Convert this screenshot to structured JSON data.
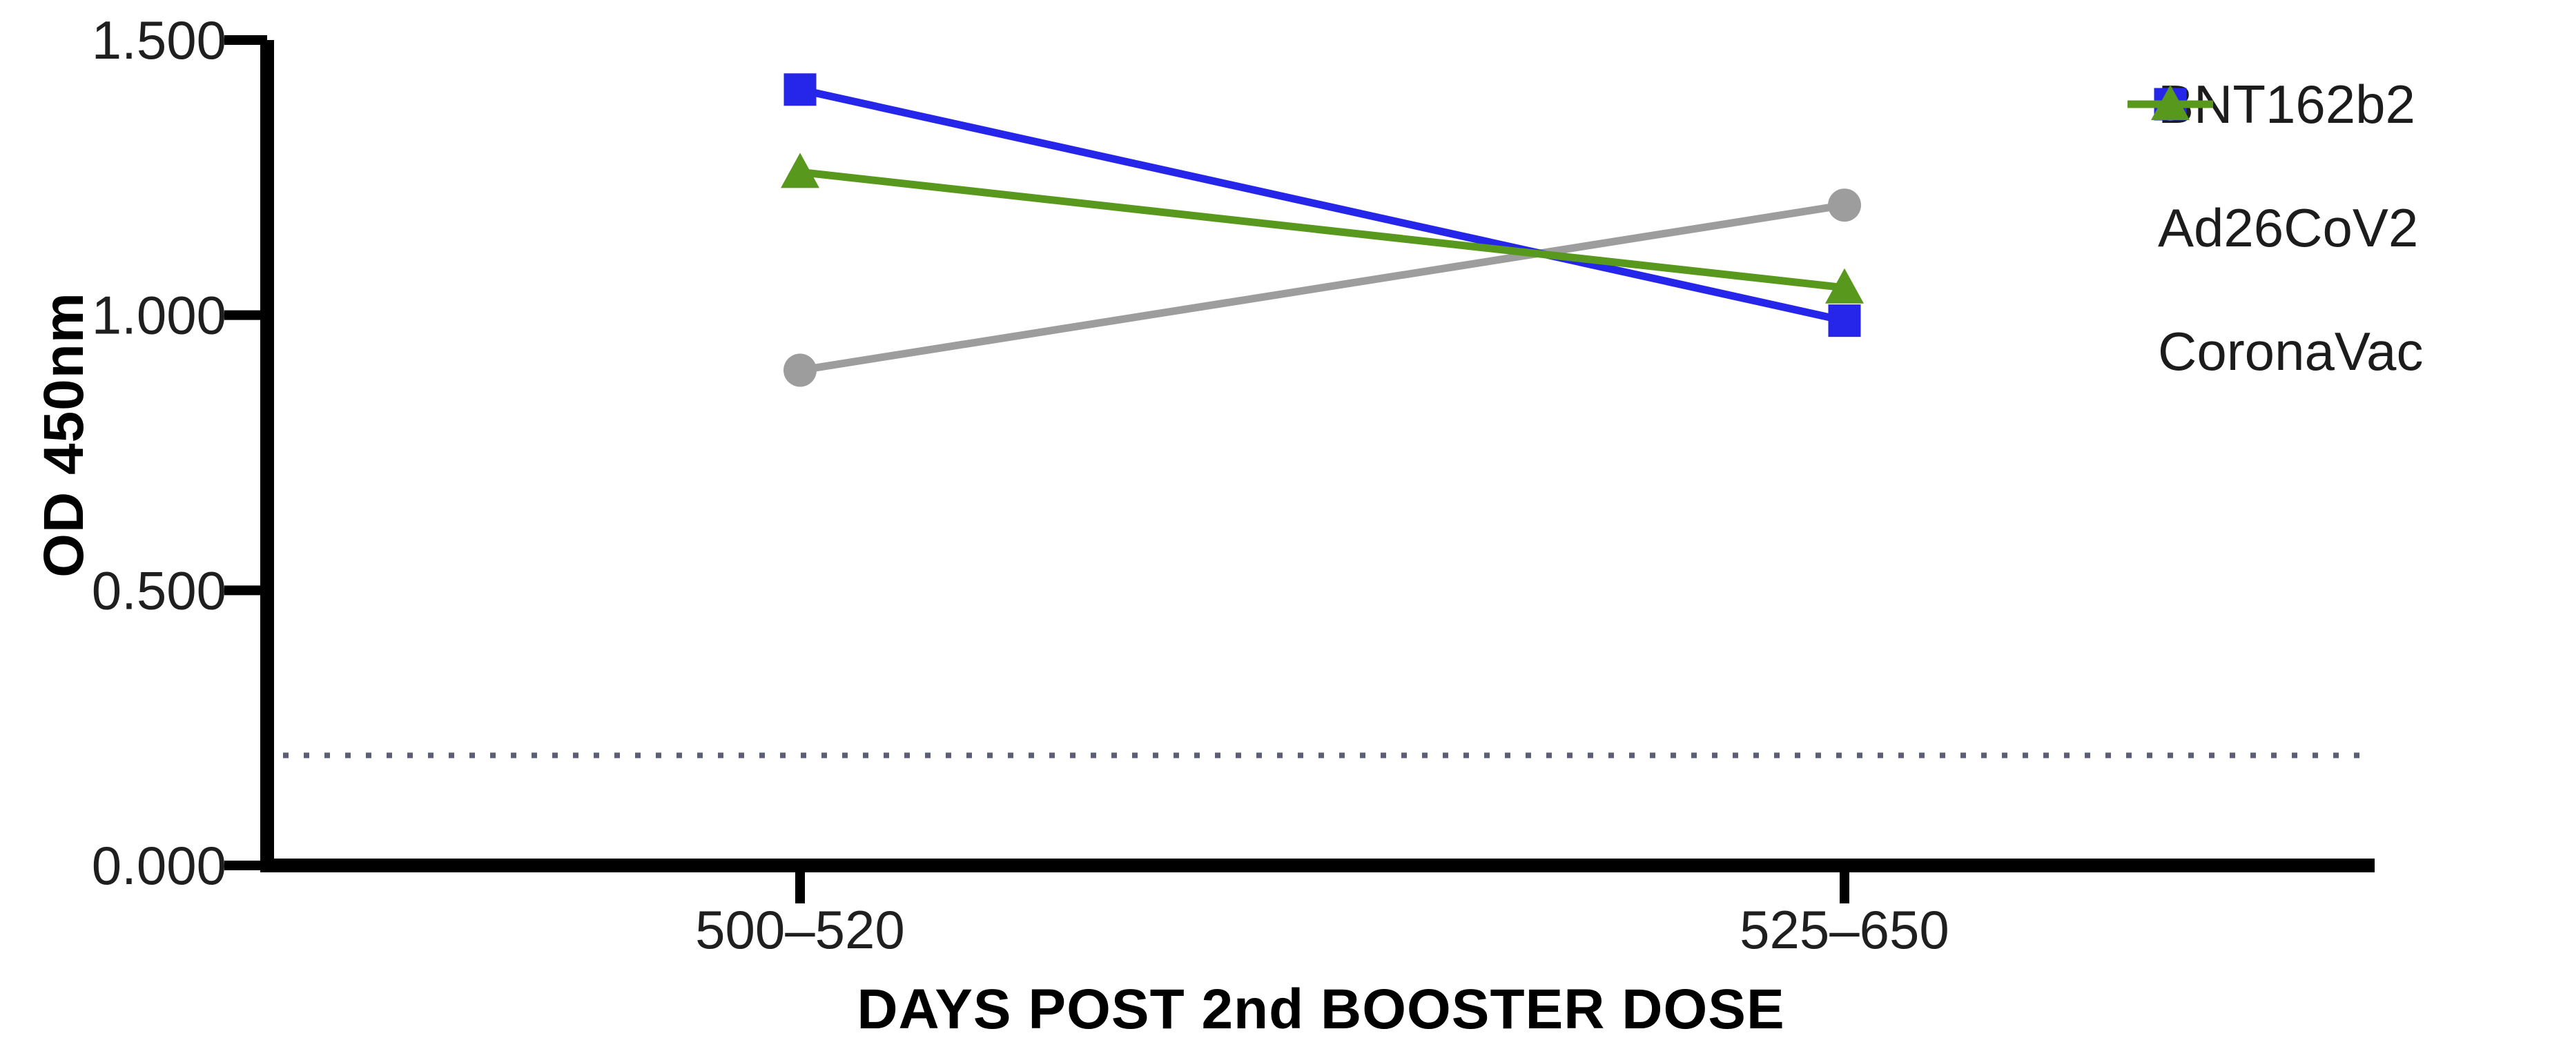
{
  "chart_data": {
    "type": "line",
    "title": "",
    "xlabel": "DAYS POST 2nd BOOSTER DOSE",
    "ylabel": "OD 450nm",
    "categories": [
      "500–520",
      "525–650"
    ],
    "series": [
      {
        "name": "BNT162b2",
        "marker": "circle",
        "color": "#9d9d9d",
        "values": [
          0.9,
          1.2
        ]
      },
      {
        "name": "Ad26CoV2",
        "marker": "square",
        "color": "#2626ea",
        "values": [
          1.41,
          0.99
        ]
      },
      {
        "name": "CoronaVac",
        "marker": "triangle",
        "color": "#58991d",
        "values": [
          1.26,
          1.05
        ]
      }
    ],
    "y_axis": {
      "min": 0,
      "max": 1.5,
      "ticks": [
        {
          "value": 0.0,
          "label": "0.000"
        },
        {
          "value": 0.5,
          "label": "0.500"
        },
        {
          "value": 1.0,
          "label": "1.000"
        },
        {
          "value": 1.5,
          "label": "1.500"
        }
      ]
    },
    "cutoff_line": {
      "value": 0.2,
      "style": "dotted",
      "color": "#5c5e75"
    },
    "legend_position": "top-right",
    "grid": false,
    "axis_color": "#000000"
  }
}
